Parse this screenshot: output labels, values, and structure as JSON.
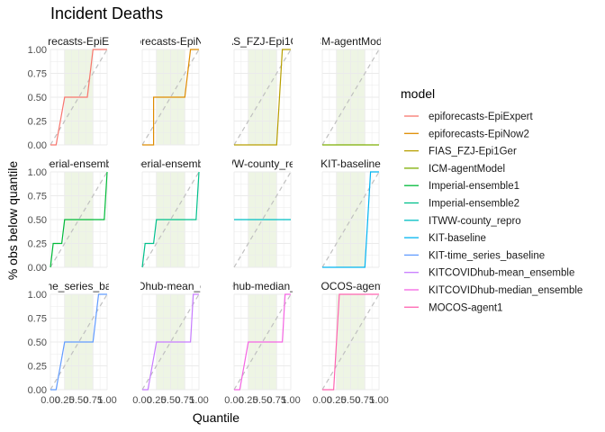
{
  "chart_data": {
    "type": "line",
    "title": "Incident Deaths",
    "xlabel": "Quantile",
    "ylabel": "% obs below quantile",
    "legend_title": "model",
    "legend_position": "right",
    "xlim": [
      0,
      1
    ],
    "ylim": [
      0,
      1
    ],
    "x_ticks": [
      "0.00",
      "0.25",
      "0.50",
      "0.75",
      "1.00"
    ],
    "y_ticks": [
      "0.00",
      "0.25",
      "0.50",
      "0.75",
      "1.00"
    ],
    "grid": true,
    "reference_line": "diagonal dashed",
    "shaded_band": [
      0.25,
      0.75
    ],
    "facets": [
      {
        "strip": "epiforecasts-EpiExpert",
        "color": "#F8766D",
        "x": [
          0,
          0.1,
          0.25,
          0.35,
          0.65,
          0.75,
          1
        ],
        "y": [
          0,
          0,
          0.5,
          0.5,
          0.5,
          1,
          1
        ]
      },
      {
        "strip": "epiforecasts-EpiNow2",
        "color": "#DE8C00",
        "x": [
          0,
          0.2,
          0.2,
          0.75,
          0.85,
          1
        ],
        "y": [
          0,
          0,
          0.5,
          0.5,
          1,
          1
        ]
      },
      {
        "strip": "FIAS_FZJ-Epi1Ger",
        "color": "#B79F00",
        "x": [
          0,
          0.75,
          0.85,
          1
        ],
        "y": [
          0,
          0,
          1,
          1
        ]
      },
      {
        "strip": "ICM-agentModel",
        "color": "#7CAE00",
        "x": [
          0,
          1
        ],
        "y": [
          0,
          0
        ]
      },
      {
        "strip": "Imperial-ensemble1",
        "color": "#00BA38",
        "x": [
          0,
          0.05,
          0.05,
          0.2,
          0.25,
          0.95,
          1
        ],
        "y": [
          0,
          0.25,
          0.25,
          0.25,
          0.5,
          0.5,
          1
        ]
      },
      {
        "strip": "Imperial-ensemble2",
        "color": "#00C08B",
        "x": [
          0,
          0.05,
          0.05,
          0.2,
          0.25,
          0.95,
          1
        ],
        "y": [
          0,
          0.25,
          0.25,
          0.25,
          0.5,
          0.5,
          1
        ]
      },
      {
        "strip": "ITWW-county_repro",
        "color": "#00BFC4",
        "x": [
          0,
          1
        ],
        "y": [
          0.5,
          0.5
        ]
      },
      {
        "strip": "KIT-baseline",
        "color": "#00B4F0",
        "x": [
          0,
          0.75,
          0.85,
          1
        ],
        "y": [
          0,
          0,
          1,
          1
        ]
      },
      {
        "strip": "KIT-time_series_baseline",
        "color": "#619CFF",
        "x": [
          0,
          0.1,
          0.25,
          0.75,
          0.85,
          1
        ],
        "y": [
          0,
          0,
          0.5,
          0.5,
          1,
          1
        ]
      },
      {
        "strip": "KITCOVIDhub-mean_ensemble",
        "color": "#C77CFF",
        "x": [
          0,
          0.1,
          0.25,
          0.85,
          0.9,
          1
        ],
        "y": [
          0,
          0,
          0.5,
          0.5,
          1,
          1
        ]
      },
      {
        "strip": "KITCOVIDhub-median_ensemble",
        "color": "#F564E3",
        "x": [
          0,
          0.1,
          0.25,
          0.85,
          0.9,
          1
        ],
        "y": [
          0,
          0,
          0.5,
          0.5,
          1,
          1
        ]
      },
      {
        "strip": "MOCOS-agent1",
        "color": "#FF64B0",
        "x": [
          0,
          0.2,
          0.3,
          1
        ],
        "y": [
          0,
          0,
          1,
          1
        ]
      }
    ]
  }
}
